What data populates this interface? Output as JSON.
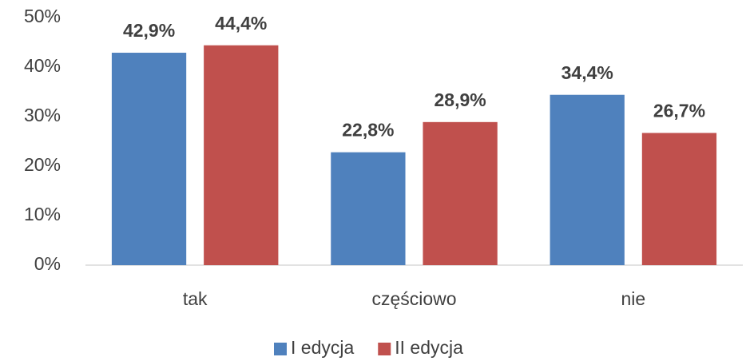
{
  "chart_data": {
    "type": "bar",
    "categories": [
      "tak",
      "częściowo",
      "nie"
    ],
    "series": [
      {
        "name": "I edycja",
        "color": "#4f81bd",
        "values": [
          42.9,
          22.8,
          34.4
        ],
        "value_labels": [
          "42,9%",
          "22,8%",
          "34,4%"
        ]
      },
      {
        "name": "II edycja",
        "color": "#c0504d",
        "values": [
          44.4,
          28.9,
          26.7
        ],
        "value_labels": [
          "44,4%",
          "28,9%",
          "26,7%"
        ]
      }
    ],
    "ylim": [
      0,
      50
    ],
    "yticks": [
      {
        "value": 0,
        "label": "0%"
      },
      {
        "value": 10,
        "label": "10%"
      },
      {
        "value": 20,
        "label": "20%"
      },
      {
        "value": 30,
        "label": "30%"
      },
      {
        "value": 40,
        "label": "40%"
      },
      {
        "value": 50,
        "label": "50%"
      }
    ],
    "grid": false,
    "legend": "bottom"
  }
}
